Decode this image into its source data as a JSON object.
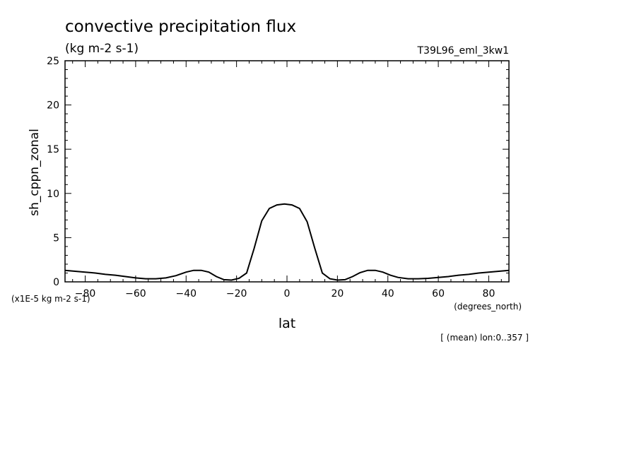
{
  "chart_data": {
    "type": "line",
    "title": "convective precipitation flux",
    "subtitle": "(kg m-2 s-1)",
    "run_label": "T39L96_eml_3kw1",
    "ylabel": "sh_cppn_zonal",
    "xlabel": "lat",
    "x_units": "(degrees_north)",
    "y_scale_note": "(x1E-5 kg m-2 s-1)",
    "footnote": "[ (mean) lon:0..357 ]",
    "xlim": [
      -88,
      88
    ],
    "ylim": [
      0,
      25
    ],
    "x_ticks": [
      -80,
      -60,
      -40,
      -20,
      0,
      20,
      40,
      60,
      80
    ],
    "y_ticks": [
      0,
      5,
      10,
      15,
      20,
      25
    ],
    "grid": false,
    "series": [
      {
        "x": [
          -88,
          -84,
          -80,
          -76,
          -72,
          -68,
          -64,
          -60,
          -56,
          -52,
          -48,
          -44,
          -40,
          -37,
          -34,
          -31,
          -28,
          -25,
          -22,
          -19,
          -16,
          -13,
          -10,
          -7,
          -4,
          -1,
          2,
          5,
          8,
          11,
          14,
          17,
          20,
          23,
          26,
          29,
          32,
          35,
          38,
          41,
          44,
          48,
          52,
          56,
          60,
          64,
          68,
          72,
          76,
          80,
          84,
          88
        ],
        "y": [
          1.3,
          1.2,
          1.1,
          1.0,
          0.85,
          0.75,
          0.6,
          0.45,
          0.35,
          0.35,
          0.45,
          0.7,
          1.1,
          1.3,
          1.3,
          1.1,
          0.6,
          0.25,
          0.2,
          0.4,
          1.0,
          3.8,
          6.9,
          8.3,
          8.7,
          8.8,
          8.7,
          8.3,
          6.8,
          3.8,
          1.0,
          0.35,
          0.2,
          0.25,
          0.6,
          1.05,
          1.3,
          1.3,
          1.1,
          0.75,
          0.5,
          0.35,
          0.35,
          0.4,
          0.5,
          0.6,
          0.75,
          0.85,
          1.0,
          1.1,
          1.2,
          1.3
        ]
      }
    ]
  }
}
